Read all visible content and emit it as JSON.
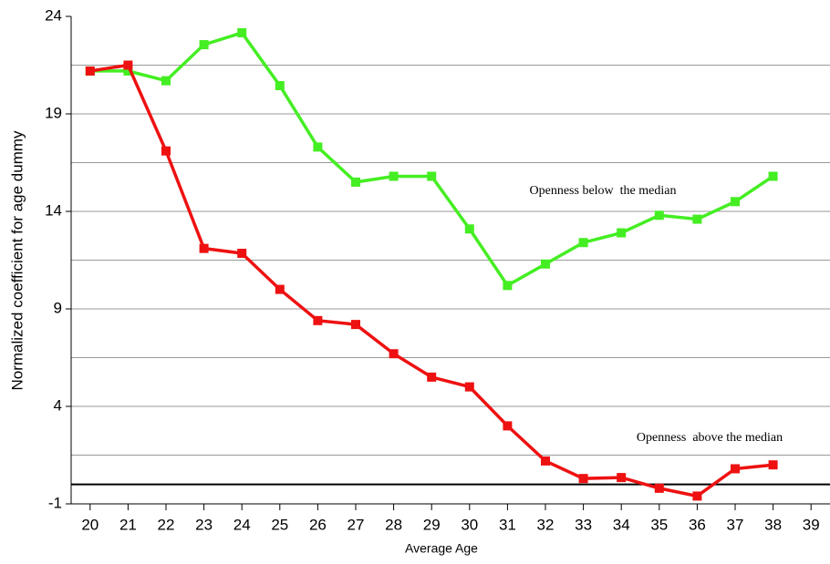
{
  "chart_data": {
    "type": "line",
    "x_label": "Average Age",
    "y_label": "Normalized coefficient for age dummy",
    "x": [
      20,
      21,
      22,
      23,
      24,
      25,
      26,
      27,
      28,
      29,
      30,
      31,
      32,
      33,
      34,
      35,
      36,
      37,
      38
    ],
    "series": [
      {
        "name": "Openness below  the median",
        "color": "#44ee22",
        "values": [
          21.2,
          21.2,
          20.7,
          22.55,
          23.16,
          20.45,
          17.3,
          15.5,
          15.8,
          15.8,
          13.1,
          10.2,
          11.3,
          12.4,
          12.9,
          13.8,
          13.6,
          14.5,
          15.8
        ]
      },
      {
        "name": "Openness  above the median",
        "color": "#ee1111",
        "values": [
          21.2,
          21.5,
          17.1,
          12.1,
          11.85,
          10.0,
          8.4,
          8.2,
          6.7,
          5.5,
          5.0,
          3.0,
          1.2,
          0.3,
          0.35,
          -0.2,
          -0.6,
          0.8,
          1.0
        ]
      }
    ],
    "xlim": [
      19.5,
      39.5
    ],
    "xticks": [
      20,
      21,
      22,
      23,
      24,
      25,
      26,
      27,
      28,
      29,
      30,
      31,
      32,
      33,
      34,
      35,
      36,
      37,
      38,
      39
    ],
    "ylim": [
      -1,
      24
    ],
    "yticks": [
      -1,
      4,
      9,
      14,
      19,
      24
    ],
    "ygrid": [
      1.5,
      4,
      6.5,
      9,
      11.5,
      14,
      16.5,
      19,
      21.5
    ],
    "baseline": 0,
    "grid": true
  }
}
